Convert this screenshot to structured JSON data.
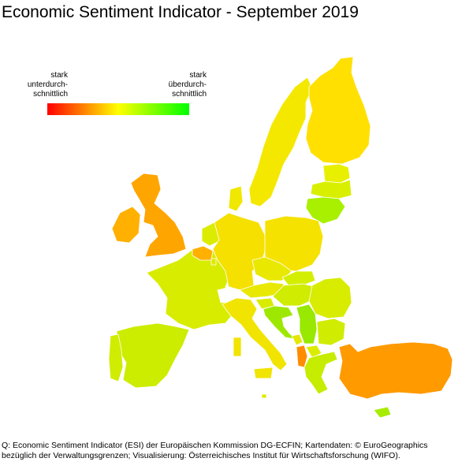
{
  "title": "Economic Sentiment Indicator - September 2019",
  "legend": {
    "low_label": "stark\nunterdurch-\nschnittlich",
    "high_label": "stark\nüberdurch-\nschnittlich",
    "colors": [
      "#ff0000",
      "#ffff00",
      "#00ff00"
    ]
  },
  "source": "Q: Economic Sentiment Indicator (ESI) der Europäischen Kommission DG-ECFIN; Kartendaten: © EuroGeographics\nbezüglich der Verwaltungsgrenzen; Visualisierung: Österreichisches Institut für Wirtschaftsforschung (WIFO).",
  "regions": [
    {
      "id": "uk",
      "color": "#ffa500"
    },
    {
      "id": "ireland",
      "color": "#ffb000"
    },
    {
      "id": "iceland",
      "color": "#ffffff"
    },
    {
      "id": "norway",
      "color": "#ffffff"
    },
    {
      "id": "sweden",
      "color": "#f5e800"
    },
    {
      "id": "finland",
      "color": "#ffe000"
    },
    {
      "id": "estonia",
      "color": "#e8f000"
    },
    {
      "id": "latvia",
      "color": "#d8f000"
    },
    {
      "id": "lithuania",
      "color": "#a8f000"
    },
    {
      "id": "denmark",
      "color": "#f0e800"
    },
    {
      "id": "germany",
      "color": "#f5e000"
    },
    {
      "id": "netherlands",
      "color": "#dcec00"
    },
    {
      "id": "belgium",
      "color": "#ffb000"
    },
    {
      "id": "luxembourg",
      "color": "#e0e800"
    },
    {
      "id": "france",
      "color": "#d8ec00"
    },
    {
      "id": "spain",
      "color": "#ccec00"
    },
    {
      "id": "portugal",
      "color": "#d0ec00"
    },
    {
      "id": "italy",
      "color": "#f0e400"
    },
    {
      "id": "switzerland",
      "color": "#ffffff"
    },
    {
      "id": "austria",
      "color": "#e8e800"
    },
    {
      "id": "poland",
      "color": "#f5e200"
    },
    {
      "id": "czechia",
      "color": "#e8e800"
    },
    {
      "id": "slovakia",
      "color": "#d4ee00"
    },
    {
      "id": "hungary",
      "color": "#d0ec00"
    },
    {
      "id": "slovenia",
      "color": "#d8ec00"
    },
    {
      "id": "croatia",
      "color": "#9ee800"
    },
    {
      "id": "bosnia",
      "color": "#ffffff"
    },
    {
      "id": "serbia",
      "color": "#98e800"
    },
    {
      "id": "montenegro",
      "color": "#e4e800"
    },
    {
      "id": "albania",
      "color": "#ff8c00"
    },
    {
      "id": "north-macedonia",
      "color": "#dcec00"
    },
    {
      "id": "romania",
      "color": "#d8ec00"
    },
    {
      "id": "bulgaria",
      "color": "#d0ec00"
    },
    {
      "id": "greece",
      "color": "#c6ec00"
    },
    {
      "id": "turkey",
      "color": "#ff9a00"
    },
    {
      "id": "cyprus",
      "color": "#a8ec00"
    },
    {
      "id": "malta",
      "color": "#e0e800"
    }
  ]
}
